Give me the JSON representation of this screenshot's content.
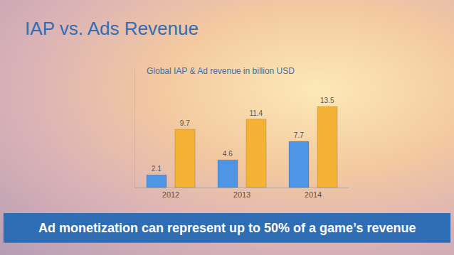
{
  "chart_data": {
    "type": "bar",
    "title": "IAP vs. Ads Revenue",
    "subtitle": "Global IAP & Ad revenue in billion USD",
    "annotations": [
      "Ad monetization can represent up to 50% of a game’s revenue"
    ],
    "categories": [
      "2012",
      "2013",
      "2014"
    ],
    "series": [
      {
        "color": "#4f95e6",
        "values": [
          2.1,
          4.6,
          7.7
        ]
      },
      {
        "color": "#f5b335",
        "values": [
          9.7,
          11.4,
          13.5
        ]
      }
    ],
    "ylim": [
      0,
      20
    ],
    "yticks": [],
    "tick_labels": "x",
    "grid": false,
    "data_labels": true
  }
}
